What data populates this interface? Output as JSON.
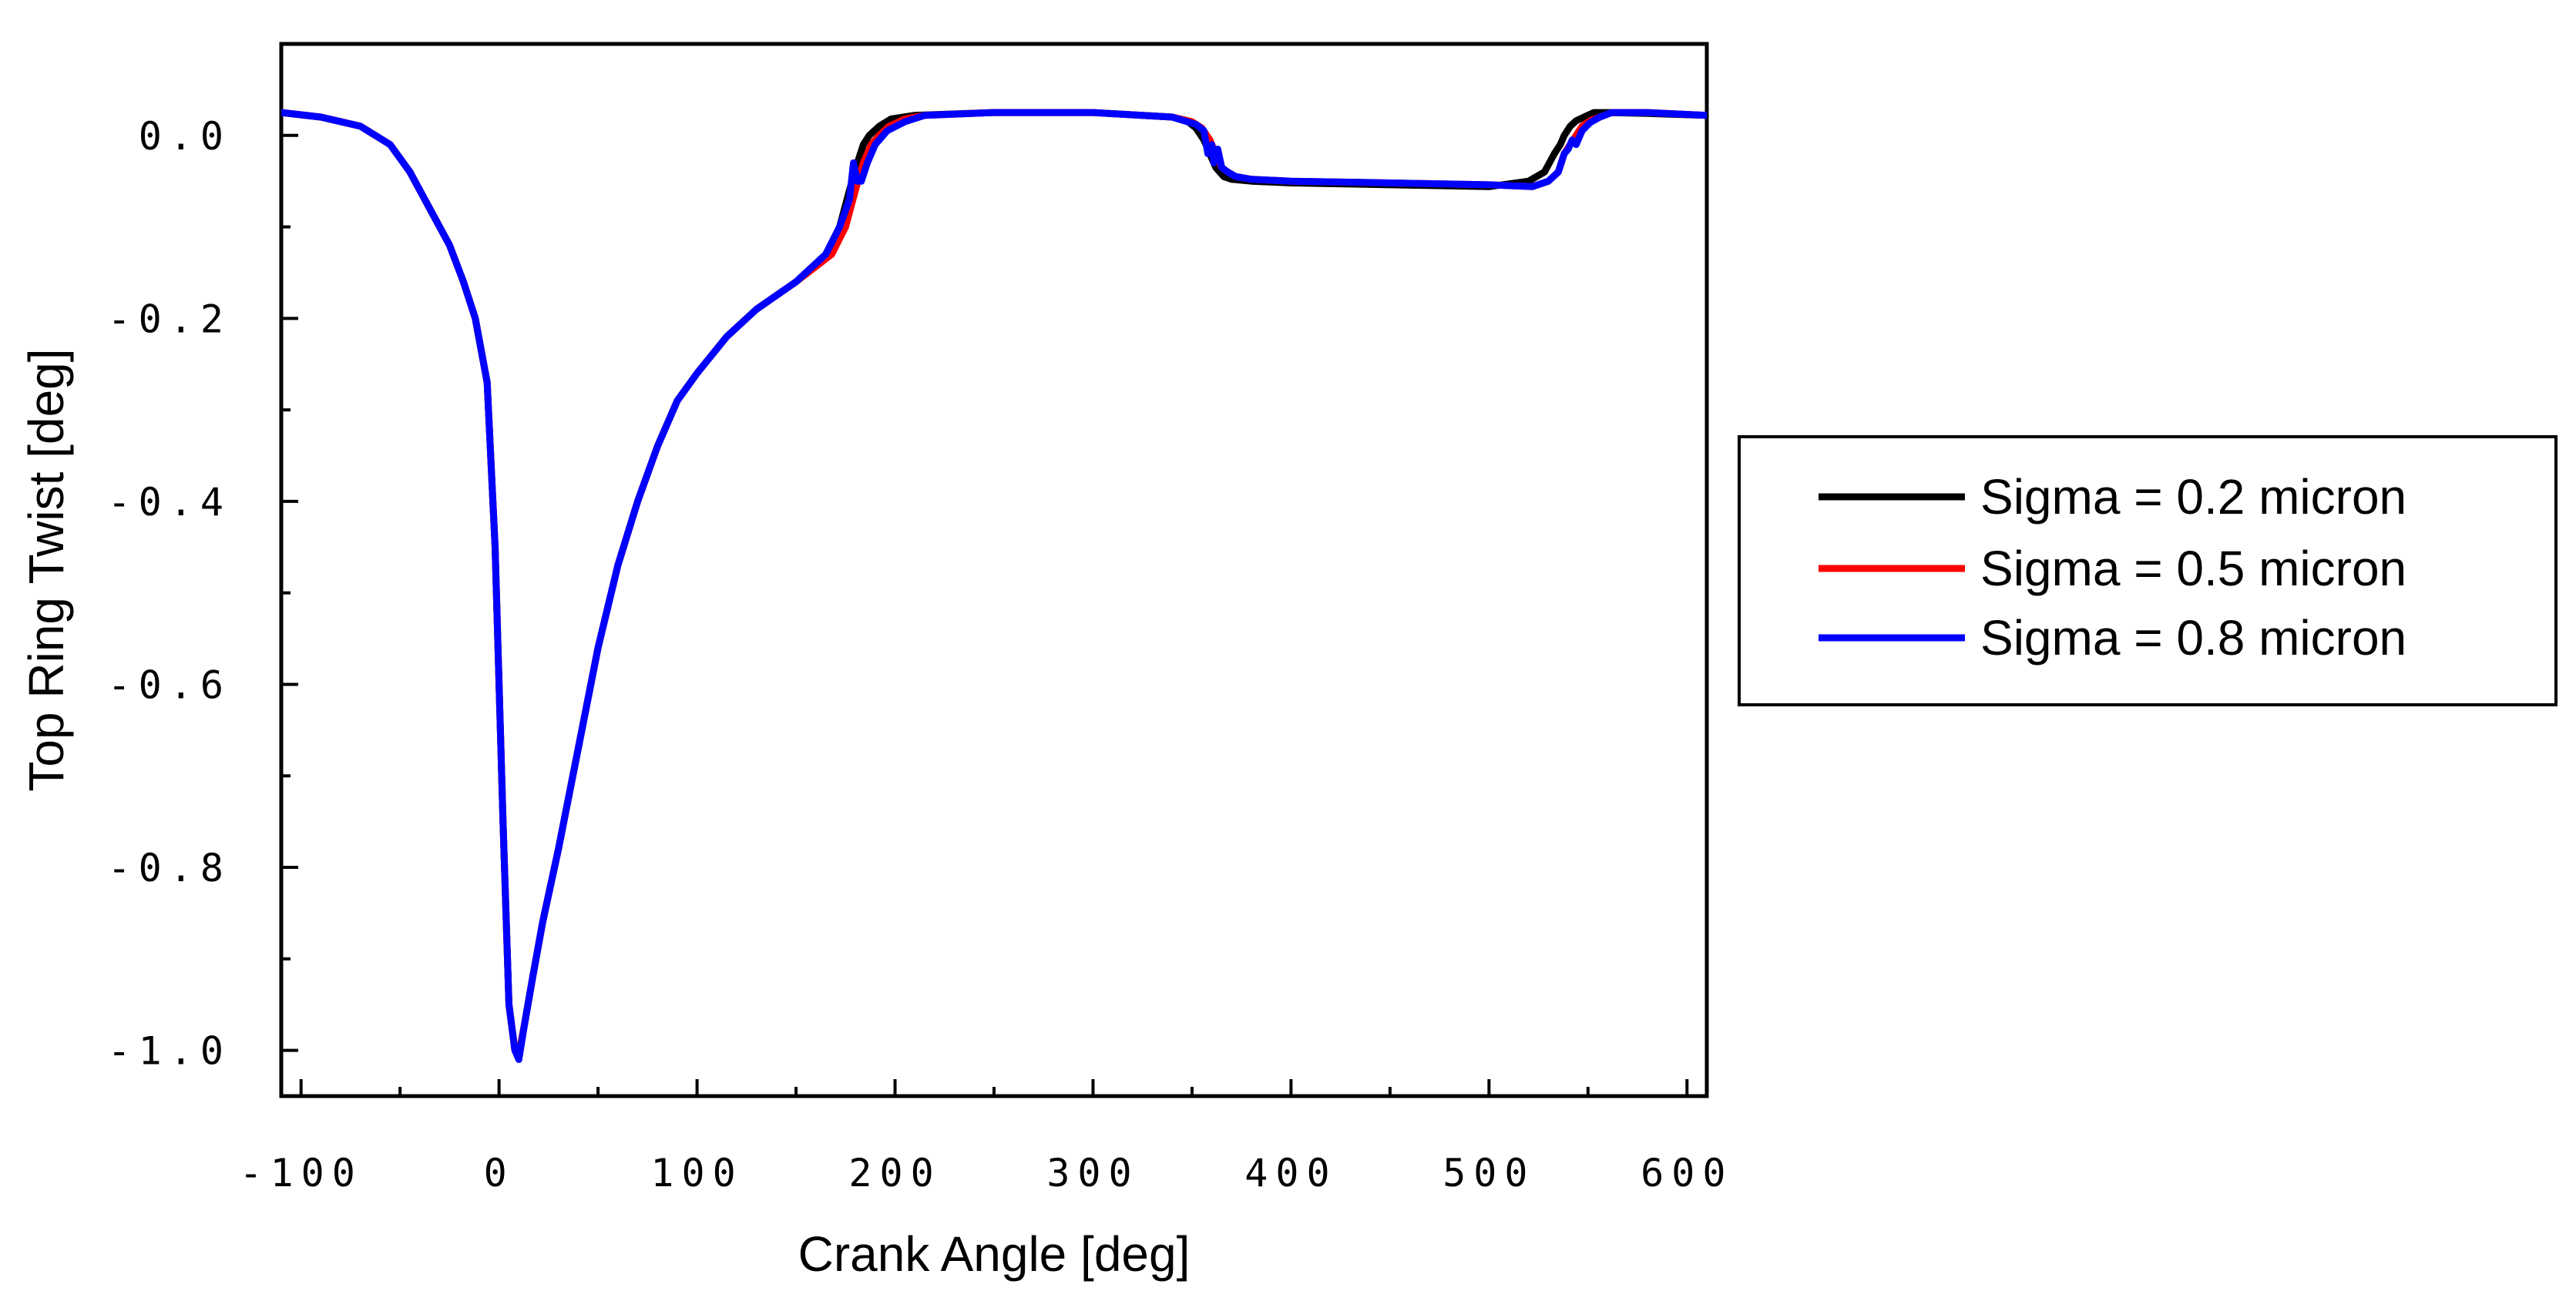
{
  "chart_data": {
    "type": "line",
    "xlabel": "Crank Angle [deg]",
    "ylabel": "Top Ring Twist [deg]",
    "xlim": [
      -110,
      610
    ],
    "ylim": [
      -1.05,
      0.1
    ],
    "xticks": [
      -100,
      0,
      100,
      200,
      300,
      400,
      500,
      600
    ],
    "xtick_labels": [
      "-100",
      "0",
      "100",
      "200",
      "300",
      "400",
      "500",
      "600"
    ],
    "yticks": [
      0.0,
      -0.2,
      -0.4,
      -0.6,
      -0.8,
      -1.0
    ],
    "ytick_labels": [
      "0.0",
      "-0.2",
      "-0.4",
      "-0.6",
      "-0.8",
      "-1.0"
    ],
    "grid": false,
    "legend_position": "right",
    "series": [
      {
        "name": "Sigma = 0.2 micron",
        "color": "#000000",
        "x": [
          -110,
          -90,
          -70,
          -55,
          -45,
          -35,
          -25,
          -18,
          -12,
          -6,
          -2,
          2,
          5,
          8,
          10,
          13,
          17,
          22,
          30,
          40,
          50,
          60,
          70,
          80,
          90,
          100,
          115,
          130,
          150,
          165,
          172,
          177,
          181,
          184,
          187,
          192,
          198,
          210,
          250,
          300,
          340,
          348,
          352,
          356,
          358,
          360,
          362,
          364,
          366,
          370,
          380,
          400,
          450,
          500,
          520,
          528,
          533,
          536,
          538,
          541,
          544,
          548,
          553,
          560,
          580,
          610
        ],
        "y": [
          0.025,
          0.02,
          0.01,
          -0.01,
          -0.04,
          -0.08,
          -0.12,
          -0.16,
          -0.2,
          -0.27,
          -0.45,
          -0.75,
          -0.95,
          -1.0,
          -1.005,
          -0.97,
          -0.92,
          -0.86,
          -0.78,
          -0.67,
          -0.56,
          -0.47,
          -0.4,
          -0.34,
          -0.29,
          -0.26,
          -0.22,
          -0.19,
          -0.16,
          -0.13,
          -0.1,
          -0.06,
          -0.03,
          -0.01,
          0.0,
          0.01,
          0.018,
          0.022,
          0.025,
          0.025,
          0.02,
          0.015,
          0.008,
          -0.005,
          -0.015,
          -0.025,
          -0.035,
          -0.04,
          -0.045,
          -0.048,
          -0.05,
          -0.052,
          -0.054,
          -0.056,
          -0.05,
          -0.04,
          -0.02,
          -0.01,
          0.0,
          0.01,
          0.016,
          0.02,
          0.025,
          0.025,
          0.024,
          0.022
        ]
      },
      {
        "name": "Sigma = 0.5 micron",
        "color": "#ff0000",
        "x": [
          -110,
          -90,
          -70,
          -55,
          -45,
          -35,
          -25,
          -18,
          -12,
          -6,
          -2,
          2,
          5,
          8,
          10,
          13,
          17,
          22,
          30,
          40,
          50,
          60,
          70,
          80,
          90,
          100,
          115,
          130,
          150,
          168,
          175,
          180,
          184,
          188,
          192,
          197,
          205,
          215,
          250,
          300,
          340,
          350,
          355,
          359,
          361,
          363,
          365,
          368,
          372,
          380,
          400,
          450,
          500,
          522,
          530,
          535,
          538,
          541,
          544,
          547,
          551,
          556,
          562,
          580,
          610
        ],
        "y": [
          0.025,
          0.02,
          0.01,
          -0.01,
          -0.04,
          -0.08,
          -0.12,
          -0.16,
          -0.2,
          -0.27,
          -0.45,
          -0.75,
          -0.95,
          -1.0,
          -1.005,
          -0.97,
          -0.92,
          -0.86,
          -0.78,
          -0.67,
          -0.56,
          -0.47,
          -0.4,
          -0.34,
          -0.29,
          -0.26,
          -0.22,
          -0.19,
          -0.16,
          -0.13,
          -0.1,
          -0.06,
          -0.03,
          -0.01,
          0.0,
          0.01,
          0.018,
          0.022,
          0.025,
          0.025,
          0.02,
          0.015,
          0.008,
          -0.005,
          -0.015,
          -0.025,
          -0.035,
          -0.04,
          -0.045,
          -0.048,
          -0.05,
          -0.052,
          -0.054,
          -0.056,
          -0.05,
          -0.04,
          -0.02,
          -0.01,
          0.0,
          0.01,
          0.016,
          0.02,
          0.025,
          0.025,
          0.022
        ]
      },
      {
        "name": "Sigma = 0.8 micron",
        "color": "#0000ff",
        "x": [
          -110,
          -90,
          -70,
          -55,
          -45,
          -35,
          -25,
          -18,
          -12,
          -6,
          -2,
          2,
          5,
          8,
          10,
          13,
          17,
          22,
          30,
          40,
          50,
          60,
          70,
          80,
          90,
          100,
          115,
          130,
          150,
          165,
          172,
          177,
          179,
          181,
          183,
          186,
          190,
          196,
          205,
          215,
          250,
          300,
          340,
          352,
          356,
          358,
          360,
          361,
          363,
          365,
          368,
          372,
          380,
          400,
          450,
          500,
          522,
          530,
          535,
          538,
          540,
          542,
          544,
          547,
          551,
          556,
          562,
          580,
          610
        ],
        "y": [
          0.025,
          0.02,
          0.01,
          -0.01,
          -0.04,
          -0.08,
          -0.12,
          -0.16,
          -0.2,
          -0.27,
          -0.45,
          -0.75,
          -0.95,
          -1.0,
          -1.01,
          -0.97,
          -0.92,
          -0.86,
          -0.78,
          -0.67,
          -0.56,
          -0.47,
          -0.4,
          -0.34,
          -0.29,
          -0.26,
          -0.22,
          -0.19,
          -0.16,
          -0.13,
          -0.1,
          -0.07,
          -0.03,
          -0.05,
          -0.05,
          -0.03,
          -0.01,
          0.005,
          0.015,
          0.022,
          0.025,
          0.025,
          0.02,
          0.012,
          0.005,
          -0.02,
          -0.01,
          -0.03,
          -0.015,
          -0.035,
          -0.04,
          -0.045,
          -0.048,
          -0.05,
          -0.052,
          -0.054,
          -0.056,
          -0.05,
          -0.04,
          -0.02,
          -0.015,
          -0.005,
          -0.01,
          0.005,
          0.014,
          0.02,
          0.025,
          0.025,
          0.022
        ]
      }
    ]
  }
}
